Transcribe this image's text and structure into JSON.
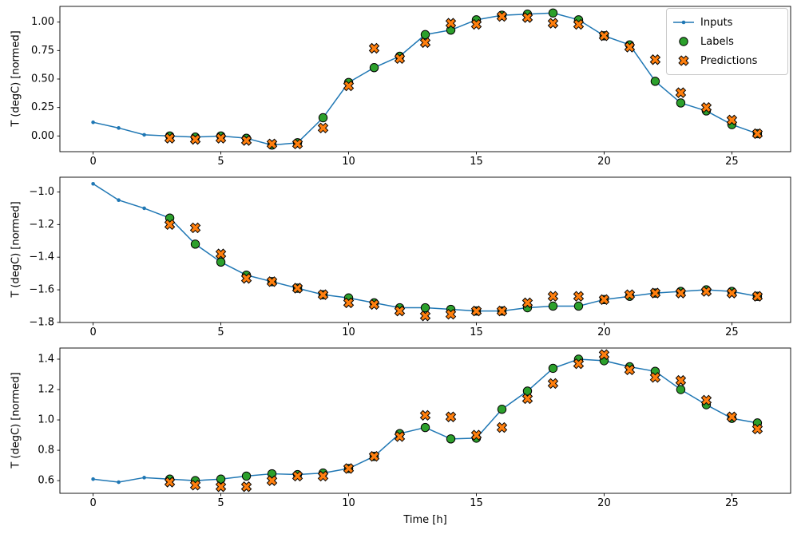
{
  "figure": {
    "background": "#ffffff",
    "xlabel": "Time [h]",
    "legend": [
      {
        "label": "Inputs",
        "marker": "line-dot",
        "color": "#1f77b4"
      },
      {
        "label": "Labels",
        "marker": "circle",
        "color": "#2ca02c"
      },
      {
        "label": "Predictions",
        "marker": "x",
        "color": "#ff7f0e"
      }
    ]
  },
  "chart_data": [
    {
      "type": "line",
      "ylabel": "T (degC) [normed]",
      "xlim": [
        -1.3,
        27.3
      ],
      "ylim": [
        -0.138,
        1.138
      ],
      "xticks": [
        0,
        5,
        10,
        15,
        20,
        25
      ],
      "xtick_labels": [
        "0",
        "5",
        "10",
        "15",
        "20",
        "25"
      ],
      "yticks": [
        0.0,
        0.25,
        0.5,
        0.75,
        1.0
      ],
      "ytick_labels": [
        "0.00",
        "0.25",
        "0.50",
        "0.75",
        "1.00"
      ],
      "series": [
        {
          "name": "Inputs",
          "marker": "line-dot",
          "color": "#1f77b4",
          "x": [
            0,
            1,
            2,
            3,
            4,
            5,
            6,
            7,
            8,
            9,
            10,
            11,
            12,
            13,
            14,
            15,
            16,
            17,
            18,
            19,
            20,
            21,
            22,
            23,
            24,
            25,
            26
          ],
          "y": [
            0.12,
            0.07,
            0.01,
            0.0,
            -0.01,
            0.0,
            -0.02,
            -0.08,
            -0.06,
            0.16,
            0.47,
            0.6,
            0.7,
            0.89,
            0.93,
            1.02,
            1.06,
            1.07,
            1.08,
            1.02,
            0.88,
            0.8,
            0.48,
            0.29,
            0.22,
            0.1,
            0.02
          ]
        },
        {
          "name": "Labels",
          "marker": "circle",
          "color": "#2ca02c",
          "edge": "#000000",
          "x": [
            3,
            4,
            5,
            6,
            7,
            8,
            9,
            10,
            11,
            12,
            13,
            14,
            15,
            16,
            17,
            18,
            19,
            20,
            21,
            22,
            23,
            24,
            25,
            26
          ],
          "y": [
            0.0,
            -0.01,
            0.0,
            -0.02,
            -0.08,
            -0.06,
            0.16,
            0.47,
            0.6,
            0.7,
            0.89,
            0.93,
            1.02,
            1.06,
            1.07,
            1.08,
            1.02,
            0.88,
            0.8,
            0.48,
            0.29,
            0.22,
            0.1,
            0.02
          ]
        },
        {
          "name": "Predictions",
          "marker": "x",
          "color": "#ff7f0e",
          "edge": "#000000",
          "x": [
            3,
            4,
            5,
            6,
            7,
            8,
            9,
            10,
            11,
            12,
            13,
            14,
            15,
            16,
            17,
            18,
            19,
            20,
            21,
            22,
            23,
            24,
            25,
            26
          ],
          "y": [
            -0.02,
            -0.03,
            -0.02,
            -0.04,
            -0.07,
            -0.07,
            0.07,
            0.44,
            0.77,
            0.68,
            0.82,
            0.99,
            0.98,
            1.05,
            1.04,
            0.99,
            0.98,
            0.88,
            0.78,
            0.67,
            0.38,
            0.25,
            0.14,
            0.02
          ]
        }
      ]
    },
    {
      "type": "line",
      "ylabel": "T (degC) [normed]",
      "xlim": [
        -1.3,
        27.3
      ],
      "ylim": [
        -1.8005,
        -0.9095
      ],
      "xticks": [
        0,
        5,
        10,
        15,
        20,
        25
      ],
      "xtick_labels": [
        "0",
        "5",
        "10",
        "15",
        "20",
        "25"
      ],
      "yticks": [
        -1.8,
        -1.6,
        -1.4,
        -1.2,
        -1.0
      ],
      "ytick_labels": [
        "−1.8",
        "−1.6",
        "−1.4",
        "−1.2",
        "−1.0"
      ],
      "series": [
        {
          "name": "Inputs",
          "marker": "line-dot",
          "color": "#1f77b4",
          "x": [
            0,
            1,
            2,
            3,
            4,
            5,
            6,
            7,
            8,
            9,
            10,
            11,
            12,
            13,
            14,
            15,
            16,
            17,
            18,
            19,
            20,
            21,
            22,
            23,
            24,
            25,
            26
          ],
          "y": [
            -0.95,
            -1.05,
            -1.1,
            -1.16,
            -1.32,
            -1.43,
            -1.51,
            -1.55,
            -1.59,
            -1.63,
            -1.65,
            -1.68,
            -1.71,
            -1.71,
            -1.72,
            -1.73,
            -1.73,
            -1.71,
            -1.7,
            -1.7,
            -1.66,
            -1.64,
            -1.62,
            -1.61,
            -1.6,
            -1.61,
            -1.64
          ]
        },
        {
          "name": "Labels",
          "marker": "circle",
          "color": "#2ca02c",
          "edge": "#000000",
          "x": [
            3,
            4,
            5,
            6,
            7,
            8,
            9,
            10,
            11,
            12,
            13,
            14,
            15,
            16,
            17,
            18,
            19,
            20,
            21,
            22,
            23,
            24,
            25,
            26
          ],
          "y": [
            -1.16,
            -1.32,
            -1.43,
            -1.51,
            -1.55,
            -1.59,
            -1.63,
            -1.65,
            -1.68,
            -1.71,
            -1.71,
            -1.72,
            -1.73,
            -1.73,
            -1.71,
            -1.7,
            -1.7,
            -1.66,
            -1.64,
            -1.62,
            -1.61,
            -1.6,
            -1.61,
            -1.64
          ]
        },
        {
          "name": "Predictions",
          "marker": "x",
          "color": "#ff7f0e",
          "edge": "#000000",
          "x": [
            3,
            4,
            5,
            6,
            7,
            8,
            9,
            10,
            11,
            12,
            13,
            14,
            15,
            16,
            17,
            18,
            19,
            20,
            21,
            22,
            23,
            24,
            25,
            26
          ],
          "y": [
            -1.2,
            -1.22,
            -1.38,
            -1.53,
            -1.55,
            -1.59,
            -1.63,
            -1.68,
            -1.69,
            -1.73,
            -1.76,
            -1.75,
            -1.73,
            -1.73,
            -1.68,
            -1.64,
            -1.64,
            -1.66,
            -1.63,
            -1.62,
            -1.62,
            -1.61,
            -1.62,
            -1.64
          ]
        }
      ]
    },
    {
      "type": "line",
      "ylabel": "T (degC) [normed]",
      "xlim": [
        -1.3,
        27.3
      ],
      "ylim": [
        0.5165,
        1.4735
      ],
      "xticks": [
        0,
        5,
        10,
        15,
        20,
        25
      ],
      "xtick_labels": [
        "0",
        "5",
        "10",
        "15",
        "20",
        "25"
      ],
      "yticks": [
        0.6,
        0.8,
        1.0,
        1.2,
        1.4
      ],
      "ytick_labels": [
        "0.6",
        "0.8",
        "1.0",
        "1.2",
        "1.4"
      ],
      "series": [
        {
          "name": "Inputs",
          "marker": "line-dot",
          "color": "#1f77b4",
          "x": [
            0,
            1,
            2,
            3,
            4,
            5,
            6,
            7,
            8,
            9,
            10,
            11,
            12,
            13,
            14,
            15,
            16,
            17,
            18,
            19,
            20,
            21,
            22,
            23,
            24,
            25,
            26
          ],
          "y": [
            0.61,
            0.59,
            0.62,
            0.61,
            0.6,
            0.61,
            0.63,
            0.645,
            0.64,
            0.65,
            0.68,
            0.76,
            0.91,
            0.95,
            0.875,
            0.88,
            1.07,
            1.19,
            1.34,
            1.4,
            1.39,
            1.35,
            1.32,
            1.2,
            1.1,
            1.01,
            0.98
          ]
        },
        {
          "name": "Labels",
          "marker": "circle",
          "color": "#2ca02c",
          "edge": "#000000",
          "x": [
            3,
            4,
            5,
            6,
            7,
            8,
            9,
            10,
            11,
            12,
            13,
            14,
            15,
            16,
            17,
            18,
            19,
            20,
            21,
            22,
            23,
            24,
            25,
            26
          ],
          "y": [
            0.61,
            0.6,
            0.61,
            0.63,
            0.645,
            0.64,
            0.65,
            0.68,
            0.76,
            0.91,
            0.95,
            0.875,
            0.88,
            1.07,
            1.19,
            1.34,
            1.4,
            1.39,
            1.35,
            1.32,
            1.2,
            1.1,
            1.01,
            0.98
          ]
        },
        {
          "name": "Predictions",
          "marker": "x",
          "color": "#ff7f0e",
          "edge": "#000000",
          "x": [
            3,
            4,
            5,
            6,
            7,
            8,
            9,
            10,
            11,
            12,
            13,
            14,
            15,
            16,
            17,
            18,
            19,
            20,
            21,
            22,
            23,
            24,
            25,
            26
          ],
          "y": [
            0.59,
            0.57,
            0.56,
            0.56,
            0.6,
            0.63,
            0.63,
            0.68,
            0.76,
            0.89,
            1.03,
            1.02,
            0.9,
            0.95,
            1.14,
            1.24,
            1.37,
            1.43,
            1.33,
            1.28,
            1.26,
            1.13,
            1.02,
            0.94
          ]
        }
      ]
    }
  ]
}
